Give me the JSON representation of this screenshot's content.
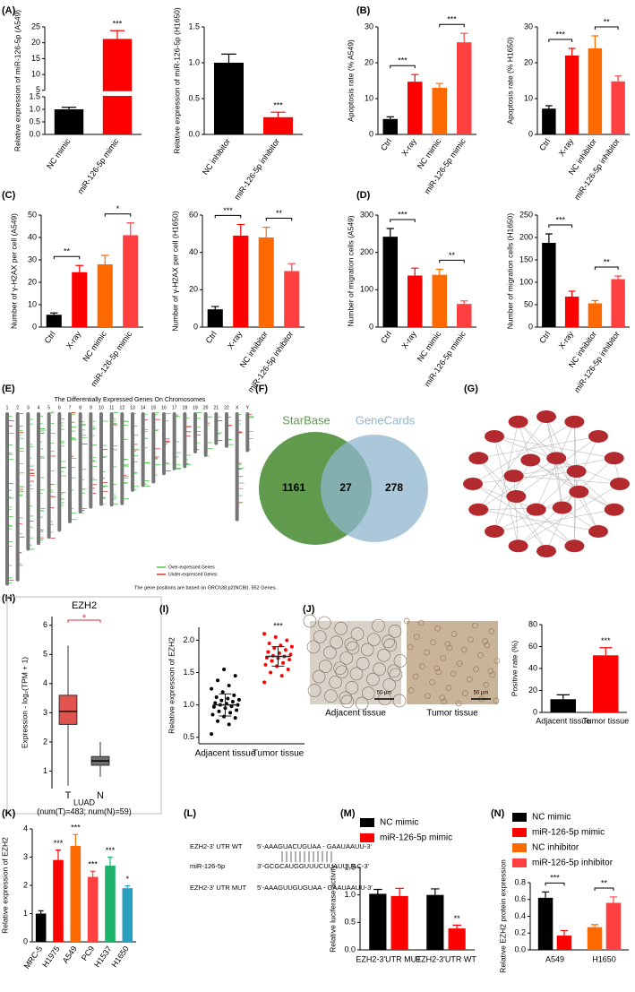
{
  "chart_data": [
    {
      "panel": "(A)",
      "type": "bar",
      "ylabel": "Relative expression of miR-126-5p (A549)",
      "categories": [
        "NC mimic",
        "miR-126-5p mimic"
      ],
      "values": [
        1.0,
        21.2
      ],
      "errors": [
        0.08,
        2.6
      ],
      "colors": [
        "#000000",
        "#ff0000"
      ],
      "significance": [
        null,
        "***"
      ],
      "ylim": [
        0,
        25
      ],
      "ybreak": [
        1.5,
        5
      ],
      "yticks": [
        {
          "value": 0,
          "label": "0.0"
        },
        0.5,
        {
          "value": 1,
          "label": "1.0"
        },
        1.5,
        5,
        10,
        15,
        20,
        25
      ]
    },
    {
      "type": "bar",
      "ylabel": "Relative expression of miR-126-5p (H1650)",
      "categories": [
        "NC inhibitor",
        "miR-126-5p inhibitor"
      ],
      "values": [
        1.0,
        0.24
      ],
      "errors": [
        0.12,
        0.07
      ],
      "colors": [
        "#000000",
        "#ff0000"
      ],
      "significance": [
        null,
        "***"
      ],
      "ylim": [
        0,
        1.5
      ],
      "yticks": [
        {
          "value": 0,
          "label": "0.0"
        },
        0.5,
        {
          "value": 1,
          "label": "1.0"
        },
        1.5
      ]
    },
    {
      "panel": "(B)",
      "type": "bar",
      "ylabel": "Apoptosis rate (% A549)",
      "categories": [
        "Ctrl",
        "X-ray",
        "NC mimic",
        "miR-126-5p mimic"
      ],
      "values": [
        4.3,
        14.7,
        13,
        25.7
      ],
      "errors": [
        0.6,
        2,
        1.2,
        2.5
      ],
      "colors": [
        "#000000",
        "#ff0000",
        "#ff6a00",
        "#ff4040"
      ],
      "brackets": [
        {
          "from": "Ctrl",
          "to": "X-ray",
          "label": "***"
        },
        {
          "from": "NC mimic",
          "to": "miR-126-5p mimic",
          "label": "***"
        }
      ],
      "ylim": [
        0,
        30
      ],
      "yticks": [
        0,
        10,
        20,
        30
      ]
    },
    {
      "type": "bar",
      "ylabel": "Apoptosis rate (% H1650)",
      "categories": [
        "Ctrl",
        "X-ray",
        "NC inhibitor",
        "miR-126-5p inhibitor"
      ],
      "values": [
        7.2,
        22,
        24,
        14.8
      ],
      "errors": [
        0.8,
        2,
        3.5,
        1.5
      ],
      "colors": [
        "#000000",
        "#ff0000",
        "#ff6a00",
        "#ff4040"
      ],
      "brackets": [
        {
          "from": "Ctrl",
          "to": "X-ray",
          "label": "***"
        },
        {
          "from": "NC inhibitor",
          "to": "miR-126-5p inhibitor",
          "label": "**"
        }
      ],
      "ylim": [
        0,
        30
      ],
      "yticks": [
        0,
        10,
        20,
        30
      ]
    },
    {
      "panel": "(C)",
      "type": "bar",
      "ylabel": "Number of γ-H2AX per cell (A549)",
      "categories": [
        "Ctrl",
        "X-ray",
        "NC mimic",
        "miR-126-5p mimic"
      ],
      "values": [
        5.5,
        24.5,
        28,
        41
      ],
      "errors": [
        0.8,
        3,
        4,
        5.5
      ],
      "colors": [
        "#000000",
        "#ff0000",
        "#ff6a00",
        "#ff4040"
      ],
      "brackets": [
        {
          "from": "Ctrl",
          "to": "X-ray",
          "label": "**"
        },
        {
          "from": "NC mimic",
          "to": "miR-126-5p mimic",
          "label": "*"
        }
      ],
      "ylim": [
        0,
        50
      ],
      "yticks": [
        0,
        10,
        20,
        30,
        40,
        50
      ]
    },
    {
      "type": "bar",
      "ylabel": "Number of γ-H2AX per cell (H1650)",
      "categories": [
        "Ctrl",
        "X-ray",
        "NC inhibitor",
        "miR-126-5p inhibitor"
      ],
      "values": [
        9.5,
        49,
        48,
        30
      ],
      "errors": [
        1.5,
        6,
        5.5,
        4
      ],
      "colors": [
        "#000000",
        "#ff0000",
        "#ff6a00",
        "#ff4040"
      ],
      "brackets": [
        {
          "from": "Ctrl",
          "to": "X-ray",
          "label": "***"
        },
        {
          "from": "NC inhibitor",
          "to": "miR-126-5p inhibitor",
          "label": "**"
        }
      ],
      "ylim": [
        0,
        60
      ],
      "yticks": [
        0,
        20,
        40,
        60
      ]
    },
    {
      "panel": "(D)",
      "type": "bar",
      "ylabel": "Number of migration cells (A549)",
      "categories": [
        "Ctrl",
        "X-ray",
        "NC mimic",
        "miR-126-5p mimic"
      ],
      "values": [
        242,
        138,
        140,
        62
      ],
      "errors": [
        22,
        20,
        15,
        8
      ],
      "colors": [
        "#000000",
        "#ff0000",
        "#ff6a00",
        "#ff4040"
      ],
      "brackets": [
        {
          "from": "Ctrl",
          "to": "X-ray",
          "label": "***"
        },
        {
          "from": "NC mimic",
          "to": "miR-126-5p mimic",
          "label": "**"
        }
      ],
      "ylim": [
        0,
        300
      ],
      "yticks": [
        0,
        100,
        200,
        300
      ]
    },
    {
      "type": "bar",
      "ylabel": "Number of migration cells (H1650)",
      "categories": [
        "Ctrl",
        "X-ray",
        "NC inhibitor",
        "miR-126-5p inhibitor"
      ],
      "values": [
        188,
        68,
        53,
        107
      ],
      "errors": [
        20,
        12,
        6,
        7
      ],
      "colors": [
        "#000000",
        "#ff0000",
        "#ff6a00",
        "#ff4040"
      ],
      "brackets": [
        {
          "from": "Ctrl",
          "to": "X-ray",
          "label": "***"
        },
        {
          "from": "NC inhibitor",
          "to": "miR-126-5p inhibitor",
          "label": "**"
        }
      ],
      "ylim": [
        0,
        250
      ],
      "yticks": [
        0,
        50,
        100,
        150,
        200,
        250
      ]
    },
    {
      "panel": "(E)",
      "type": "chromosome_map",
      "title": "The Differentially Expressed Genes On Chromosomes",
      "chromosomes": [
        "1",
        "2",
        "3",
        "4",
        "5",
        "6",
        "7",
        "8",
        "9",
        "10",
        "11",
        "12",
        "13",
        "14",
        "15",
        "16",
        "17",
        "18",
        "19",
        "20",
        "21",
        "22",
        "X",
        "Y"
      ],
      "legend": [
        {
          "name": "Over-expressed Genes",
          "color": "#4cc84c"
        },
        {
          "name": "Under-expressed Genes",
          "color": "#e03030"
        }
      ],
      "note": "The gene positions are based on GRCh38.p2(NCBI). 952 Genes."
    },
    {
      "panel": "(F)",
      "type": "venn",
      "sets": [
        {
          "name": "StarBase",
          "color": "#5f9a4d"
        },
        {
          "name": "GeneCards",
          "color": "#8fb5cf"
        }
      ],
      "values": [
        1161,
        27,
        278
      ]
    },
    {
      "panel": "(G)",
      "type": "network"
    },
    {
      "panel": "(H)",
      "type": "box",
      "title": "EZH2",
      "ylabel": "Expression - log₂(TPM + 1)",
      "categories": [
        "T",
        "N"
      ],
      "xlabel": "LUAD",
      "note": "(num(T)=483; num(N)=59)",
      "colors": [
        "#e0534f",
        "#6f6f6f"
      ],
      "boxes": [
        {
          "min": 0.5,
          "q1": 2.6,
          "median": 3.05,
          "q3": 3.6,
          "max": 5.3
        },
        {
          "min": 0.8,
          "q1": 1.2,
          "median": 1.35,
          "q3": 1.5,
          "max": 2.0
        }
      ],
      "significance": "*",
      "ylim": [
        0.4,
        6.3
      ],
      "yticks": [
        1,
        2,
        3,
        4,
        5,
        6
      ]
    },
    {
      "panel": "(I)",
      "type": "strip",
      "ylabel": "Relative expression of EZH2",
      "categories": [
        "Adjacent tissue",
        "Tumor tissue"
      ],
      "points": [
        [
          0.55,
          0.7,
          0.75,
          0.8,
          0.82,
          0.85,
          0.88,
          0.9,
          0.92,
          0.95,
          0.97,
          0.98,
          1.0,
          1.0,
          1.02,
          1.03,
          1.05,
          1.07,
          1.08,
          1.1,
          1.12,
          1.15,
          1.2,
          1.25,
          1.3,
          1.38,
          1.45,
          1.55
        ],
        [
          1.35,
          1.45,
          1.5,
          1.55,
          1.6,
          1.62,
          1.65,
          1.68,
          1.7,
          1.72,
          1.73,
          1.75,
          1.76,
          1.78,
          1.8,
          1.82,
          1.85,
          1.88,
          1.9,
          1.92,
          1.95,
          2.0,
          2.05,
          2.1
        ]
      ],
      "means": [
        1.0,
        1.75
      ],
      "errors": [
        0.17,
        0.15
      ],
      "significance": [
        null,
        "***"
      ],
      "colors": [
        "#000000",
        "#ff0000"
      ],
      "ylim": [
        0.4,
        2.2
      ],
      "yticks": [
        0.5,
        {
          "value": 1,
          "label": "1.0"
        },
        1.5,
        {
          "value": 2,
          "label": "2.0"
        }
      ]
    },
    {
      "panel": "(J)",
      "type": "images",
      "captions": [
        "Adjacent tissue",
        "Tumor tissue"
      ],
      "scale_bar": "50 μm"
    },
    {
      "type": "bar",
      "ylabel": "Positive rate (%)",
      "categories": [
        "Adjacent tissue",
        "Tumor tissue"
      ],
      "values": [
        12,
        52
      ],
      "errors": [
        4,
        7
      ],
      "colors": [
        "#000000",
        "#ff0000"
      ],
      "significance": [
        null,
        "***"
      ],
      "ylim": [
        0,
        80
      ],
      "yticks": [
        0,
        20,
        40,
        60,
        80
      ]
    },
    {
      "panel": "(K)",
      "type": "bar",
      "ylabel": "Relative expression of EZH2",
      "categories": [
        "MRC-5",
        "H1975",
        "A549",
        "PC9",
        "H1537",
        "H1650"
      ],
      "values": [
        1.0,
        2.9,
        3.4,
        2.3,
        2.7,
        1.9
      ],
      "errors": [
        0.1,
        0.35,
        0.4,
        0.2,
        0.3,
        0.08
      ],
      "colors": [
        "#000000",
        "#ff0000",
        "#ff6a00",
        "#ff4040",
        "#1db36b",
        "#2aa0c0"
      ],
      "significance": [
        null,
        "***",
        "***",
        "***",
        "***",
        "*"
      ],
      "ylim": [
        0,
        4
      ],
      "yticks": [
        0,
        1,
        2,
        3,
        4
      ]
    },
    {
      "panel": "(L)",
      "type": "sequence",
      "rows": [
        {
          "label": "EZH2-3' UTR WT",
          "sequence": "5'-AAAGUACUGUAA - GAAUAAUU-3'"
        },
        {
          "label": "miR-126-5p",
          "sequence": "3'-GCGCAUGGUUUCUUAUUUAC-3'"
        },
        {
          "label": "EZH2-3' UTR MUT",
          "sequence": "5'-AAAGUUGUGUAA - GAAUAAUU-3'"
        }
      ]
    },
    {
      "panel": "(M)",
      "type": "grouped_bar",
      "ylabel": "Relative luciferase activity",
      "categories": [
        "EZH2-3'UTR MUT",
        "EZH2-3'UTR WT"
      ],
      "series": [
        {
          "name": "NC mimic",
          "color": "#000000",
          "values": [
            1.02,
            1.0
          ],
          "errors": [
            0.08,
            0.11
          ]
        },
        {
          "name": "miR-126-5p mimic",
          "color": "#ff0000",
          "values": [
            0.98,
            0.39
          ],
          "errors": [
            0.14,
            0.06
          ],
          "significance": [
            null,
            "**"
          ]
        }
      ],
      "ylim": [
        0,
        1.5
      ],
      "yticks": [
        {
          "value": 0,
          "label": "0.0"
        },
        0.5,
        {
          "value": 1,
          "label": "1.0"
        },
        1.5
      ]
    },
    {
      "panel": "(N)",
      "type": "grouped_bar",
      "ylabel": "Relative EZH2 protein expression",
      "categories": [
        "A549",
        "H1650"
      ],
      "series": [
        {
          "name": "NC mimic",
          "color": "#000000",
          "values": [
            0.62,
            null
          ],
          "errors": [
            0.07,
            null
          ]
        },
        {
          "name": "miR-126-5p mimic",
          "color": "#ff0000",
          "values": [
            0.17,
            null
          ],
          "errors": [
            0.06,
            null
          ]
        },
        {
          "name": "NC inhibitor",
          "color": "#ff6a00",
          "values": [
            null,
            0.27
          ],
          "errors": [
            null,
            0.03
          ]
        },
        {
          "name": "miR-126-5p inhibitor",
          "color": "#ff4040",
          "values": [
            null,
            0.56
          ],
          "errors": [
            null,
            0.07
          ]
        }
      ],
      "brackets": [
        {
          "category": "A549",
          "label": "***"
        },
        {
          "category": "H1650",
          "label": "**"
        }
      ],
      "ylim": [
        0,
        0.8
      ],
      "yticks": [
        {
          "value": 0,
          "label": "0.0"
        },
        0.2,
        0.4,
        0.6,
        0.8
      ]
    }
  ]
}
